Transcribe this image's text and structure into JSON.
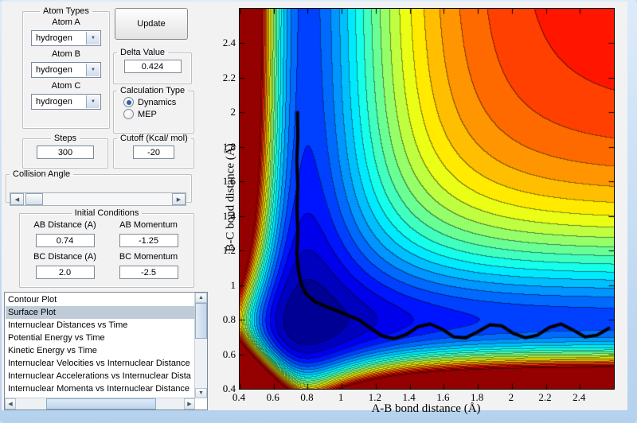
{
  "atom_types": {
    "title": "Atom Types",
    "atoms": [
      {
        "label": "Atom A",
        "value": "hydrogen"
      },
      {
        "label": "Atom B",
        "value": "hydrogen"
      },
      {
        "label": "Atom C",
        "value": "hydrogen"
      }
    ]
  },
  "update_button": {
    "label": "Update"
  },
  "delta": {
    "title": "Delta Value",
    "value": "0.424"
  },
  "calculation_type": {
    "title": "Calculation Type",
    "options": [
      {
        "label": "Dynamics",
        "selected": true
      },
      {
        "label": "MEP",
        "selected": false
      }
    ]
  },
  "steps": {
    "title": "Steps",
    "value": "300"
  },
  "cutoff": {
    "title": "Cutoff (Kcal/ mol)",
    "value": "-20"
  },
  "collision_angle": {
    "label": "Collision Angle"
  },
  "initial_conditions": {
    "title": "Initial Conditions",
    "fields": [
      {
        "label": "AB Distance (A)",
        "value": "0.74"
      },
      {
        "label": "AB Momentum",
        "value": "-1.25"
      },
      {
        "label": "BC Distance (A)",
        "value": "2.0"
      },
      {
        "label": "BC Momentum",
        "value": "-2.5"
      }
    ]
  },
  "plot_list": {
    "selected_index": 1,
    "items": [
      "Contour Plot",
      "Surface Plot",
      "Internuclear Distances vs Time",
      "Potential Energy vs Time",
      "Kinetic Energy vs Time",
      "Internuclear Velocities vs Internuclear Distance",
      "Internuclear Accelerations vs Internuclear Dista",
      "Internuclear Momenta vs Internuclear Distance"
    ]
  },
  "chart_data": {
    "type": "heatmap",
    "subtype": "filled-contour-potential-energy-surface",
    "title": "",
    "xlabel": "A-B bond distance (Å)",
    "ylabel": "B-C bond distance (Å)",
    "xlim": [
      0.4,
      2.6
    ],
    "ylim": [
      0.4,
      2.6
    ],
    "x_ticks": [
      "0.4",
      "0.6",
      "0.8",
      "1",
      "1.2",
      "1.4",
      "1.6",
      "1.8",
      "2",
      "2.2",
      "2.4"
    ],
    "y_ticks": [
      "0.4",
      "0.6",
      "0.8",
      "1",
      "1.2",
      "1.4",
      "1.6",
      "1.8",
      "2",
      "2.2",
      "2.4"
    ],
    "x_tick_values": [
      0.4,
      0.6,
      0.8,
      1.0,
      1.2,
      1.4,
      1.6,
      1.8,
      2.0,
      2.2,
      2.4
    ],
    "y_tick_values": [
      0.4,
      0.6,
      0.8,
      1.0,
      1.2,
      1.4,
      1.6,
      1.8,
      2.0,
      2.2,
      2.4
    ],
    "colormap": "jet",
    "levels": 24,
    "grid": false,
    "potential": {
      "r0": 0.8,
      "a": 2.65,
      "coupling": 2.6,
      "vmax": 5.2
    },
    "trajectory": {
      "color": "#000000",
      "width": 4,
      "start": {
        "ab_distance": 0.74,
        "bc_distance": 2.0
      },
      "points": [
        [
          0.74,
          2.0
        ],
        [
          0.742,
          1.86
        ],
        [
          0.736,
          1.72
        ],
        [
          0.741,
          1.58
        ],
        [
          0.737,
          1.44
        ],
        [
          0.742,
          1.3
        ],
        [
          0.736,
          1.18
        ],
        [
          0.745,
          1.09
        ],
        [
          0.76,
          1.01
        ],
        [
          0.79,
          0.95
        ],
        [
          0.84,
          0.905
        ],
        [
          0.91,
          0.875
        ],
        [
          0.99,
          0.845
        ],
        [
          1.05,
          0.82
        ],
        [
          1.1,
          0.8
        ],
        [
          1.17,
          0.75
        ],
        [
          1.24,
          0.705
        ],
        [
          1.31,
          0.69
        ],
        [
          1.38,
          0.715
        ],
        [
          1.45,
          0.76
        ],
        [
          1.52,
          0.775
        ],
        [
          1.59,
          0.745
        ],
        [
          1.66,
          0.7
        ],
        [
          1.73,
          0.695
        ],
        [
          1.8,
          0.73
        ],
        [
          1.87,
          0.77
        ],
        [
          1.94,
          0.765
        ],
        [
          2.01,
          0.72
        ],
        [
          2.08,
          0.695
        ],
        [
          2.15,
          0.71
        ],
        [
          2.22,
          0.755
        ],
        [
          2.29,
          0.775
        ],
        [
          2.36,
          0.74
        ],
        [
          2.43,
          0.7
        ],
        [
          2.5,
          0.71
        ],
        [
          2.57,
          0.75
        ]
      ]
    }
  }
}
